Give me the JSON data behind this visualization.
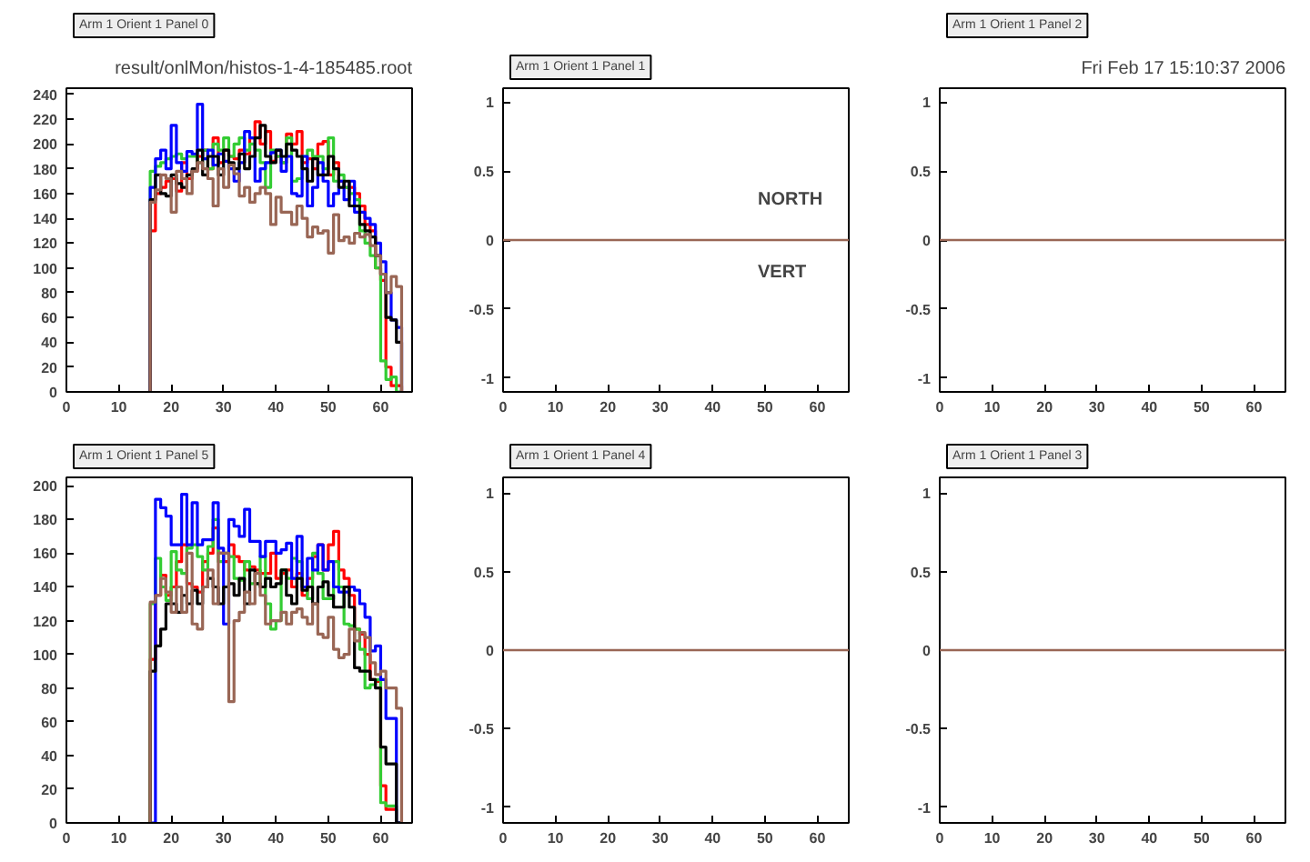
{
  "chart_data": [
    {
      "type": "histogram",
      "title": "Arm 1 Orient 1 Panel 0",
      "subtitle": "result/onlMon/histos-1-4-185485.root",
      "bins": [
        16,
        17,
        18,
        19,
        20,
        21,
        22,
        23,
        24,
        25,
        26,
        27,
        28,
        29,
        30,
        31,
        32,
        33,
        34,
        35,
        36,
        37,
        38,
        39,
        40,
        41,
        42,
        43,
        44,
        45,
        46,
        47,
        48,
        49,
        50,
        51,
        52,
        53,
        54,
        55,
        56,
        57,
        58,
        59,
        60,
        61,
        62,
        63,
        64
      ],
      "xlim": [
        0,
        66
      ],
      "xticks": [
        0,
        10,
        20,
        30,
        40,
        50,
        60
      ],
      "ylim": [
        0,
        245
      ],
      "yticks": [
        0,
        20,
        40,
        60,
        80,
        100,
        120,
        140,
        160,
        180,
        200,
        220,
        240
      ],
      "series": [
        {
          "color": "#ff0000",
          "values": [
            130,
            160,
            165,
            170,
            172,
            162,
            185,
            172,
            178,
            190,
            195,
            180,
            205,
            185,
            195,
            190,
            188,
            195,
            192,
            205,
            218,
            200,
            210,
            186,
            190,
            185,
            208,
            200,
            210,
            185,
            188,
            180,
            200,
            202,
            175,
            185,
            170,
            165,
            165,
            160,
            150,
            135,
            130,
            100,
            90,
            20,
            5,
            5
          ]
        },
        {
          "color": "#33cc33",
          "values": [
            178,
            182,
            185,
            188,
            190,
            192,
            188,
            190,
            190,
            185,
            195,
            180,
            200,
            195,
            205,
            190,
            200,
            205,
            195,
            200,
            195,
            185,
            165,
            195,
            190,
            185,
            205,
            170,
            172,
            190,
            195,
            190,
            190,
            180,
            205,
            170,
            175,
            165,
            160,
            155,
            130,
            120,
            110,
            100,
            25,
            10,
            12,
            0
          ]
        },
        {
          "color": "#0000ff",
          "values": [
            165,
            188,
            195,
            180,
            215,
            185,
            178,
            194,
            192,
            232,
            188,
            195,
            183,
            192,
            186,
            180,
            170,
            185,
            210,
            205,
            170,
            180,
            185,
            193,
            195,
            178,
            190,
            160,
            158,
            190,
            150,
            165,
            185,
            170,
            150,
            160,
            170,
            155,
            170,
            145,
            145,
            140,
            135,
            120,
            105,
            80,
            58,
            52
          ]
        },
        {
          "color": "#000000",
          "values": [
            155,
            175,
            160,
            158,
            175,
            168,
            165,
            175,
            180,
            195,
            175,
            190,
            190,
            175,
            195,
            185,
            180,
            192,
            180,
            190,
            205,
            215,
            190,
            185,
            195,
            190,
            200,
            195,
            190,
            180,
            170,
            188,
            175,
            175,
            190,
            180,
            165,
            170,
            150,
            150,
            135,
            130,
            125,
            110,
            95,
            60,
            58,
            40
          ]
        },
        {
          "color": "#996655",
          "values": [
            153,
            163,
            175,
            172,
            145,
            178,
            172,
            160,
            178,
            185,
            180,
            172,
            150,
            180,
            165,
            183,
            176,
            158,
            165,
            153,
            160,
            165,
            160,
            135,
            157,
            145,
            145,
            135,
            150,
            140,
            125,
            133,
            128,
            130,
            112,
            143,
            122,
            125,
            120,
            128,
            125,
            127,
            118,
            110,
            95,
            80,
            93,
            85
          ]
        }
      ]
    },
    {
      "type": "histogram",
      "title": "Arm 1 Orient 1 Panel 1",
      "annotations": [
        "NORTH",
        "VERT"
      ],
      "xlim": [
        0,
        66
      ],
      "xticks": [
        0,
        10,
        20,
        30,
        40,
        50,
        60
      ],
      "ylim": [
        -1.1,
        1.1
      ],
      "yticks": [
        -1,
        -0.5,
        0,
        0.5,
        1
      ],
      "ref_lines": [
        {
          "axis": "y",
          "value": 0,
          "color": "#996655"
        }
      ]
    },
    {
      "type": "histogram",
      "title": "Arm 1 Orient 1 Panel 2",
      "annotations": [
        "Fri Feb 17 15:10:37 2006"
      ],
      "xlim": [
        0,
        66
      ],
      "xticks": [
        0,
        10,
        20,
        30,
        40,
        50,
        60
      ],
      "ylim": [
        -1.1,
        1.1
      ],
      "yticks": [
        -1,
        -0.5,
        0,
        0.5,
        1
      ],
      "ref_lines": [
        {
          "axis": "y",
          "value": 0,
          "color": "#996655"
        }
      ]
    },
    {
      "type": "histogram",
      "title": "Arm 1 Orient 1 Panel 5",
      "bins": [
        16,
        17,
        18,
        19,
        20,
        21,
        22,
        23,
        24,
        25,
        26,
        27,
        28,
        29,
        30,
        31,
        32,
        33,
        34,
        35,
        36,
        37,
        38,
        39,
        40,
        41,
        42,
        43,
        44,
        45,
        46,
        47,
        48,
        49,
        50,
        51,
        52,
        53,
        54,
        55,
        56,
        57,
        58,
        59,
        60,
        61,
        62,
        63,
        64
      ],
      "xlim": [
        0,
        66
      ],
      "xticks": [
        0,
        10,
        20,
        30,
        40,
        50,
        60
      ],
      "ylim": [
        0,
        205
      ],
      "yticks": [
        0,
        20,
        40,
        60,
        80,
        100,
        120,
        140,
        160,
        180,
        200
      ],
      "series": [
        {
          "color": "#ff0000",
          "values": [
            97,
            135,
            147,
            135,
            140,
            155,
            165,
            142,
            140,
            137,
            155,
            160,
            175,
            160,
            155,
            165,
            158,
            155,
            150,
            152,
            150,
            148,
            148,
            160,
            145,
            148,
            150,
            140,
            148,
            135,
            145,
            158,
            165,
            150,
            165,
            173,
            150,
            145,
            135,
            115,
            112,
            100,
            85,
            84,
            22,
            8,
            8,
            0
          ]
        },
        {
          "color": "#33cc33",
          "values": [
            130,
            157,
            140,
            132,
            161,
            150,
            148,
            163,
            165,
            158,
            150,
            164,
            180,
            155,
            160,
            158,
            145,
            144,
            155,
            142,
            142,
            158,
            130,
            115,
            120,
            150,
            145,
            157,
            155,
            140,
            133,
            160,
            148,
            133,
            133,
            155,
            140,
            118,
            117,
            115,
            103,
            80,
            82,
            85,
            12,
            10,
            10,
            0
          ]
        },
        {
          "color": "#0000ff",
          "values": [
            0,
            192,
            187,
            182,
            165,
            165,
            195,
            165,
            190,
            165,
            168,
            168,
            190,
            163,
            118,
            180,
            176,
            170,
            186,
            167,
            167,
            158,
            167,
            167,
            160,
            162,
            166,
            145,
            170,
            140,
            157,
            150,
            165,
            150,
            155,
            140,
            137,
            137,
            140,
            138,
            130,
            122,
            102,
            105,
            85,
            62,
            62,
            0
          ]
        },
        {
          "color": "#000000",
          "values": [
            90,
            105,
            115,
            130,
            130,
            125,
            135,
            130,
            138,
            130,
            140,
            145,
            140,
            130,
            140,
            142,
            135,
            145,
            130,
            150,
            142,
            140,
            145,
            140,
            142,
            150,
            135,
            130,
            145,
            138,
            140,
            130,
            140,
            143,
            135,
            128,
            128,
            140,
            128,
            92,
            90,
            90,
            85,
            80,
            45,
            35,
            35,
            0
          ]
        },
        {
          "color": "#996655",
          "values": [
            131,
            135,
            145,
            137,
            125,
            140,
            125,
            160,
            118,
            115,
            140,
            150,
            130,
            160,
            160,
            72,
            120,
            125,
            137,
            130,
            148,
            135,
            118,
            120,
            120,
            125,
            118,
            125,
            127,
            122,
            118,
            130,
            112,
            110,
            122,
            103,
            98,
            100,
            115,
            108,
            113,
            110,
            95,
            88,
            90,
            80,
            80,
            68
          ]
        }
      ]
    },
    {
      "type": "histogram",
      "title": "Arm 1 Orient 1 Panel 4",
      "xlim": [
        0,
        66
      ],
      "xticks": [
        0,
        10,
        20,
        30,
        40,
        50,
        60
      ],
      "ylim": [
        -1.1,
        1.1
      ],
      "yticks": [
        -1,
        -0.5,
        0,
        0.5,
        1
      ],
      "ref_lines": [
        {
          "axis": "y",
          "value": 0,
          "color": "#996655"
        }
      ]
    },
    {
      "type": "histogram",
      "title": "Arm 1 Orient 1 Panel 3",
      "xlim": [
        0,
        66
      ],
      "xticks": [
        0,
        10,
        20,
        30,
        40,
        50,
        60
      ],
      "ylim": [
        -1.1,
        1.1
      ],
      "yticks": [
        -1,
        -0.5,
        0,
        0.5,
        1
      ],
      "ref_lines": [
        {
          "axis": "y",
          "value": 0,
          "color": "#996655"
        }
      ]
    }
  ]
}
